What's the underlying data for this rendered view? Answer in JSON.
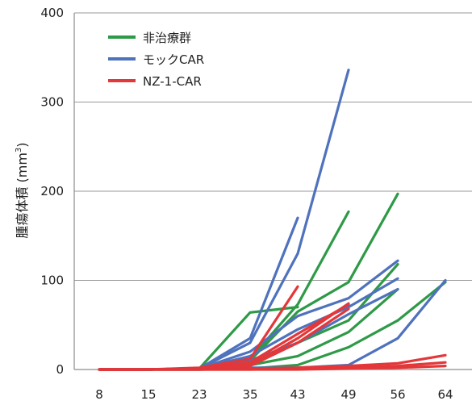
{
  "chart_data": {
    "type": "line",
    "ylabel": "腫瘍体積 (mm",
    "ylabel_sup": "3",
    "ylabel_close": ")",
    "ylim": [
      0,
      400
    ],
    "yticks": [
      0,
      100,
      200,
      300,
      400
    ],
    "categories": [
      "8",
      "15",
      "23",
      "35",
      "43",
      "49",
      "56",
      "64"
    ],
    "grid": true,
    "legend_position": "top-left",
    "groups": [
      {
        "name": "非治療群",
        "color": "#2e9a47"
      },
      {
        "name": "モックCAR",
        "color": "#4f72bd"
      },
      {
        "name": "NZ-1-CAR",
        "color": "#e3373a"
      }
    ],
    "series": [
      {
        "group": 0,
        "values": [
          0,
          0,
          1,
          64,
          70,
          null,
          null,
          null
        ]
      },
      {
        "group": 0,
        "values": [
          0,
          0,
          1,
          12,
          73,
          177,
          null,
          null
        ]
      },
      {
        "group": 0,
        "values": [
          0,
          0,
          1,
          10,
          65,
          98,
          197,
          null
        ]
      },
      {
        "group": 0,
        "values": [
          0,
          0,
          1,
          8,
          30,
          55,
          118,
          null
        ]
      },
      {
        "group": 0,
        "values": [
          0,
          0,
          1,
          5,
          15,
          42,
          90,
          null
        ]
      },
      {
        "group": 0,
        "values": [
          0,
          0,
          0,
          1,
          5,
          25,
          55,
          98
        ]
      },
      {
        "group": 1,
        "values": [
          0,
          0,
          1,
          30,
          130,
          336,
          null,
          null
        ]
      },
      {
        "group": 1,
        "values": [
          0,
          0,
          1,
          35,
          170,
          null,
          null,
          null
        ]
      },
      {
        "group": 1,
        "values": [
          0,
          0,
          1,
          20,
          60,
          80,
          122,
          null
        ]
      },
      {
        "group": 1,
        "values": [
          0,
          0,
          1,
          15,
          45,
          70,
          102,
          null
        ]
      },
      {
        "group": 1,
        "values": [
          0,
          0,
          1,
          10,
          30,
          62,
          90,
          null
        ]
      },
      {
        "group": 1,
        "values": [
          0,
          0,
          0,
          2,
          2,
          5,
          35,
          100
        ]
      },
      {
        "group": 2,
        "values": [
          0,
          0,
          2,
          12,
          93,
          null,
          null,
          null
        ]
      },
      {
        "group": 2,
        "values": [
          0,
          0,
          1,
          8,
          40,
          73,
          null,
          null
        ]
      },
      {
        "group": 2,
        "values": [
          0,
          0,
          1,
          5,
          35,
          74,
          null,
          null
        ]
      },
      {
        "group": 2,
        "values": [
          0,
          0,
          1,
          4,
          30,
          68,
          null,
          null
        ]
      },
      {
        "group": 2,
        "values": [
          0,
          0,
          0,
          1,
          2,
          4,
          7,
          16
        ]
      },
      {
        "group": 2,
        "values": [
          0,
          0,
          0,
          0,
          1,
          2,
          4,
          8
        ]
      },
      {
        "group": 2,
        "values": [
          0,
          0,
          0,
          0,
          0,
          1,
          2,
          4
        ]
      }
    ]
  }
}
